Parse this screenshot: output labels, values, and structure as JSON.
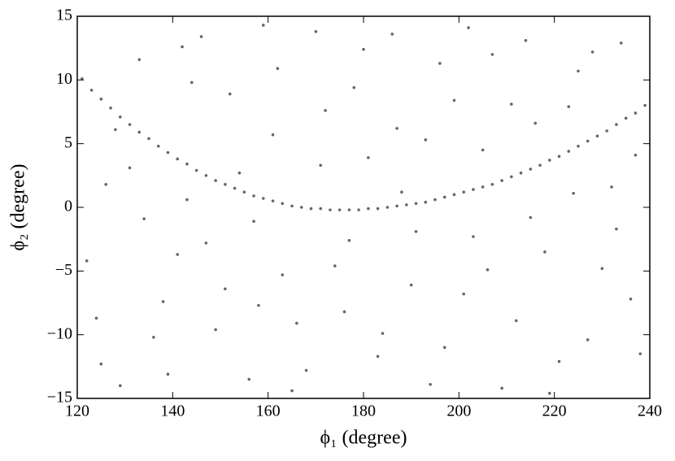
{
  "chart_data": {
    "type": "scatter",
    "xlabel": "ϕ₁ (degree)",
    "ylabel": "ϕ₂ (degree)",
    "color": "#000000",
    "xlim": [
      120,
      240
    ],
    "xticks": [
      120,
      140,
      160,
      180,
      200,
      220,
      240
    ],
    "ylim": [
      -15,
      15
    ],
    "yticks": [
      {
        "value": -15,
        "label": "−15"
      },
      {
        "value": -10,
        "label": "−10"
      },
      {
        "value": -5,
        "label": "−5"
      },
      0,
      5,
      10,
      15
    ],
    "x": [
      121,
      123,
      125,
      127,
      129,
      131,
      133,
      135,
      137,
      139,
      141,
      143,
      145,
      147,
      149,
      151,
      153,
      155,
      157,
      159,
      161,
      163,
      165,
      167,
      169,
      171,
      173,
      175,
      177,
      179,
      181,
      183,
      185,
      187,
      189,
      191,
      193,
      195,
      197,
      199,
      201,
      203,
      205,
      207,
      209,
      211,
      213,
      215,
      217,
      219,
      221,
      223,
      225,
      227,
      229,
      231,
      233,
      235,
      237,
      239,
      125,
      131,
      138,
      142,
      147,
      152,
      156,
      161,
      166,
      170,
      174,
      178,
      183,
      187,
      191,
      196,
      201,
      205,
      209,
      214,
      218,
      223,
      227,
      232,
      236,
      128,
      134,
      139,
      144,
      149,
      154,
      159,
      163,
      168,
      172,
      176,
      181,
      186,
      190,
      194,
      199,
      203,
      207,
      212,
      216,
      221,
      225,
      230,
      234,
      238,
      122,
      126,
      133,
      136,
      141,
      146,
      151,
      157,
      162,
      165,
      171,
      177,
      180,
      184,
      188,
      193,
      197,
      202,
      206,
      211,
      215,
      219,
      224,
      228,
      233,
      237,
      124,
      129,
      143,
      158
    ],
    "y": [
      10.1,
      9.2,
      8.5,
      7.8,
      7.1,
      6.5,
      5.9,
      5.4,
      4.8,
      4.3,
      3.8,
      3.4,
      2.9,
      2.5,
      2.1,
      1.8,
      1.5,
      1.2,
      0.9,
      0.7,
      0.5,
      0.3,
      0.1,
      0.0,
      -0.1,
      -0.1,
      -0.2,
      -0.2,
      -0.2,
      -0.2,
      -0.1,
      -0.1,
      0.0,
      0.1,
      0.2,
      0.3,
      0.4,
      0.6,
      0.8,
      1.0,
      1.2,
      1.4,
      1.6,
      1.8,
      2.1,
      2.4,
      2.7,
      3.0,
      3.3,
      3.7,
      4.0,
      4.4,
      4.8,
      5.2,
      5.6,
      6.0,
      6.5,
      7.0,
      7.4,
      8.0,
      -12.3,
      3.1,
      -7.4,
      12.6,
      -2.8,
      8.9,
      -13.5,
      5.7,
      -9.1,
      13.8,
      -4.6,
      9.4,
      -11.7,
      6.2,
      -1.9,
      11.3,
      -6.8,
      4.5,
      -14.2,
      13.1,
      -3.5,
      7.9,
      -10.4,
      1.6,
      -7.2,
      6.1,
      -0.9,
      -13.1,
      9.8,
      -9.6,
      2.7,
      14.3,
      -5.3,
      -12.8,
      7.6,
      -8.2,
      3.9,
      13.6,
      -6.1,
      -13.9,
      8.4,
      -2.3,
      12.0,
      -8.9,
      6.6,
      -12.1,
      10.7,
      -4.8,
      12.9,
      -11.5,
      -4.2,
      1.8,
      11.6,
      -10.2,
      -3.7,
      13.4,
      -6.4,
      -1.1,
      10.9,
      -14.4,
      3.3,
      -2.6,
      12.4,
      -9.9,
      1.2,
      5.3,
      -11.0,
      14.1,
      -4.9,
      8.1,
      -0.8,
      -14.6,
      1.1,
      12.2,
      -1.7,
      4.1,
      -8.7,
      -14.0,
      0.6,
      -7.7
    ]
  }
}
